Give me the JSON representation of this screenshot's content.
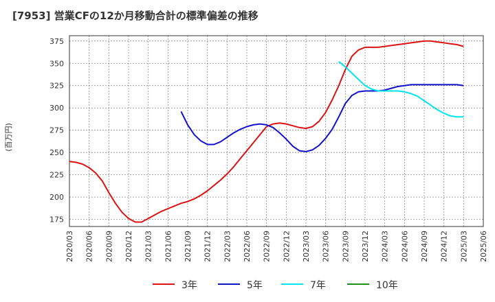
{
  "title": "[7953]  営業CFの12か月移動合計の標準偏差の推移",
  "chart_data": {
    "type": "line",
    "ylabel": "(百万円)",
    "ylim": [
      167,
      381
    ],
    "yticks": [
      175,
      200,
      225,
      250,
      275,
      300,
      325,
      350,
      375
    ],
    "xticks": [
      "2020/03",
      "2020/06",
      "2020/09",
      "2020/12",
      "2021/03",
      "2021/06",
      "2021/09",
      "2021/12",
      "2022/03",
      "2022/06",
      "2022/09",
      "2022/12",
      "2023/03",
      "2023/06",
      "2023/09",
      "2023/12",
      "2024/03",
      "2024/06",
      "2024/09",
      "2024/12",
      "2025/03",
      "2025/06"
    ],
    "grid": true,
    "legend_position": "bottom",
    "series": [
      {
        "name": "3年",
        "color": "#dd1111",
        "points": [
          [
            "2020/03",
            240
          ],
          [
            "2020/04",
            239
          ],
          [
            "2020/05",
            237
          ],
          [
            "2020/06",
            233
          ],
          [
            "2020/07",
            227
          ],
          [
            "2020/08",
            218
          ],
          [
            "2020/09",
            205
          ],
          [
            "2020/10",
            193
          ],
          [
            "2020/11",
            183
          ],
          [
            "2020/12",
            176
          ],
          [
            "2021/01",
            172
          ],
          [
            "2021/02",
            172
          ],
          [
            "2021/03",
            176
          ],
          [
            "2021/04",
            180
          ],
          [
            "2021/05",
            184
          ],
          [
            "2021/06",
            187
          ],
          [
            "2021/07",
            190
          ],
          [
            "2021/08",
            193
          ],
          [
            "2021/09",
            195
          ],
          [
            "2021/10",
            198
          ],
          [
            "2021/11",
            202
          ],
          [
            "2021/12",
            207
          ],
          [
            "2022/01",
            213
          ],
          [
            "2022/02",
            219
          ],
          [
            "2022/03",
            226
          ],
          [
            "2022/04",
            234
          ],
          [
            "2022/05",
            243
          ],
          [
            "2022/06",
            252
          ],
          [
            "2022/07",
            261
          ],
          [
            "2022/08",
            270
          ],
          [
            "2022/09",
            279
          ],
          [
            "2022/10",
            282
          ],
          [
            "2022/11",
            283
          ],
          [
            "2022/12",
            282
          ],
          [
            "2023/01",
            280
          ],
          [
            "2023/02",
            278
          ],
          [
            "2023/03",
            277
          ],
          [
            "2023/04",
            279
          ],
          [
            "2023/05",
            285
          ],
          [
            "2023/06",
            295
          ],
          [
            "2023/07",
            309
          ],
          [
            "2023/08",
            325
          ],
          [
            "2023/09",
            343
          ],
          [
            "2023/10",
            358
          ],
          [
            "2023/11",
            365
          ],
          [
            "2023/12",
            368
          ],
          [
            "2024/01",
            368
          ],
          [
            "2024/02",
            368
          ],
          [
            "2024/03",
            369
          ],
          [
            "2024/04",
            370
          ],
          [
            "2024/05",
            371
          ],
          [
            "2024/06",
            372
          ],
          [
            "2024/07",
            373
          ],
          [
            "2024/08",
            374
          ],
          [
            "2024/09",
            375
          ],
          [
            "2024/10",
            375
          ],
          [
            "2024/11",
            374
          ],
          [
            "2024/12",
            373
          ],
          [
            "2025/01",
            372
          ],
          [
            "2025/02",
            371
          ],
          [
            "2025/03",
            369
          ]
        ]
      },
      {
        "name": "5年",
        "color": "#1111cc",
        "points": [
          [
            "2021/08",
            296
          ],
          [
            "2021/09",
            281
          ],
          [
            "2021/10",
            270
          ],
          [
            "2021/11",
            263
          ],
          [
            "2021/12",
            259
          ],
          [
            "2022/01",
            259
          ],
          [
            "2022/02",
            262
          ],
          [
            "2022/03",
            267
          ],
          [
            "2022/04",
            272
          ],
          [
            "2022/05",
            276
          ],
          [
            "2022/06",
            279
          ],
          [
            "2022/07",
            281
          ],
          [
            "2022/08",
            282
          ],
          [
            "2022/09",
            281
          ],
          [
            "2022/10",
            278
          ],
          [
            "2022/11",
            272
          ],
          [
            "2022/12",
            265
          ],
          [
            "2023/01",
            257
          ],
          [
            "2023/02",
            252
          ],
          [
            "2023/03",
            251
          ],
          [
            "2023/04",
            253
          ],
          [
            "2023/05",
            258
          ],
          [
            "2023/06",
            266
          ],
          [
            "2023/07",
            276
          ],
          [
            "2023/08",
            290
          ],
          [
            "2023/09",
            305
          ],
          [
            "2023/10",
            314
          ],
          [
            "2023/11",
            318
          ],
          [
            "2023/12",
            319
          ],
          [
            "2024/01",
            319
          ],
          [
            "2024/02",
            319
          ],
          [
            "2024/03",
            320
          ],
          [
            "2024/04",
            322
          ],
          [
            "2024/05",
            324
          ],
          [
            "2024/06",
            325
          ],
          [
            "2024/07",
            326
          ],
          [
            "2024/08",
            326
          ],
          [
            "2024/09",
            326
          ],
          [
            "2024/10",
            326
          ],
          [
            "2024/11",
            326
          ],
          [
            "2024/12",
            326
          ],
          [
            "2025/01",
            326
          ],
          [
            "2025/02",
            326
          ],
          [
            "2025/03",
            325
          ]
        ]
      },
      {
        "name": "7年",
        "color": "#00e5ee",
        "points": [
          [
            "2023/08",
            352
          ],
          [
            "2023/09",
            346
          ],
          [
            "2023/10",
            339
          ],
          [
            "2023/11",
            332
          ],
          [
            "2023/12",
            325
          ],
          [
            "2024/01",
            321
          ],
          [
            "2024/02",
            319
          ],
          [
            "2024/03",
            319
          ],
          [
            "2024/04",
            319
          ],
          [
            "2024/05",
            319
          ],
          [
            "2024/06",
            318
          ],
          [
            "2024/07",
            316
          ],
          [
            "2024/08",
            313
          ],
          [
            "2024/09",
            308
          ],
          [
            "2024/10",
            303
          ],
          [
            "2024/11",
            298
          ],
          [
            "2024/12",
            294
          ],
          [
            "2025/01",
            291
          ],
          [
            "2025/02",
            290
          ],
          [
            "2025/03",
            290
          ]
        ]
      },
      {
        "name": "10年",
        "color": "#228b22",
        "points": []
      }
    ]
  }
}
